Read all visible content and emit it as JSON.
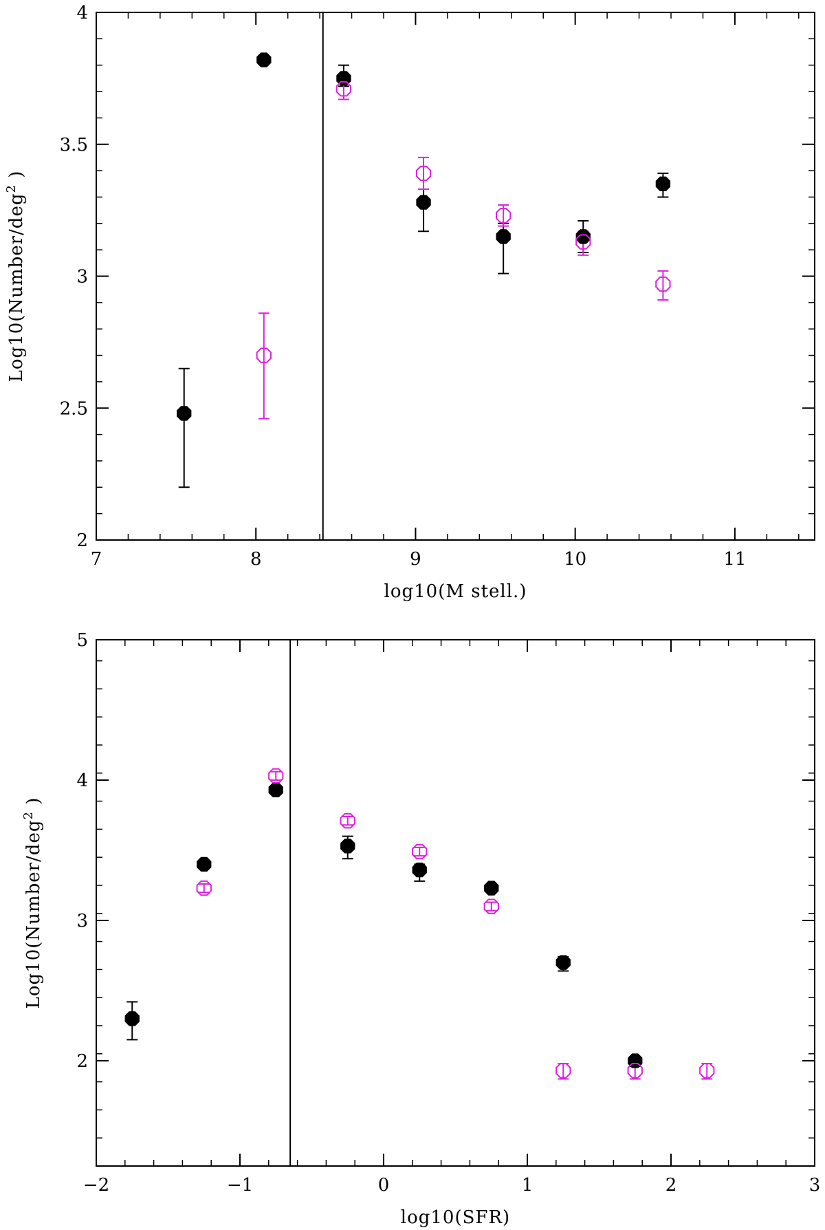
{
  "chart_data": [
    {
      "type": "scatter",
      "xlabel": "log10(M  stell.)",
      "ylabel": "Log10(Number/deg",
      "ylabel_sup": "2",
      "ylabel_end": " )",
      "xlim": [
        7,
        11.5
      ],
      "ylim": [
        2,
        4
      ],
      "x_ticks": [
        7,
        8,
        9,
        10,
        11
      ],
      "x_tick_labels": [
        "7",
        "8",
        "9",
        "10",
        "11"
      ],
      "x_minor_step": 0.2,
      "y_ticks": [
        2,
        2.5,
        3,
        3.5,
        4
      ],
      "y_tick_labels": [
        "2",
        "2.5",
        "3",
        "3.5",
        "4"
      ],
      "y_minor_step": 0.1,
      "vline": 8.42,
      "series": [
        {
          "name": "filled",
          "style": "filled",
          "color": "#000000",
          "points": [
            {
              "x": 7.55,
              "y": 2.48,
              "lo": 2.2,
              "hi": 2.65
            },
            {
              "x": 8.05,
              "y": 3.82,
              "lo": 3.82,
              "hi": 3.82
            },
            {
              "x": 8.55,
              "y": 3.75,
              "lo": 3.72,
              "hi": 3.8
            },
            {
              "x": 9.05,
              "y": 3.28,
              "lo": 3.17,
              "hi": 3.33
            },
            {
              "x": 9.55,
              "y": 3.15,
              "lo": 3.01,
              "hi": 3.2
            },
            {
              "x": 10.05,
              "y": 3.15,
              "lo": 3.09,
              "hi": 3.21
            },
            {
              "x": 10.55,
              "y": 3.35,
              "lo": 3.3,
              "hi": 3.39
            }
          ]
        },
        {
          "name": "open",
          "style": "open",
          "color": "#e020e0",
          "points": [
            {
              "x": 8.05,
              "y": 2.7,
              "lo": 2.46,
              "hi": 2.86
            },
            {
              "x": 8.55,
              "y": 3.71,
              "lo": 3.67,
              "hi": 3.74
            },
            {
              "x": 9.05,
              "y": 3.39,
              "lo": 3.33,
              "hi": 3.45
            },
            {
              "x": 9.55,
              "y": 3.23,
              "lo": 3.19,
              "hi": 3.27
            },
            {
              "x": 10.05,
              "y": 3.13,
              "lo": 3.08,
              "hi": 3.17
            },
            {
              "x": 10.55,
              "y": 2.97,
              "lo": 2.91,
              "hi": 3.02
            }
          ]
        }
      ]
    },
    {
      "type": "scatter",
      "xlabel": "log10(SFR)",
      "ylabel": "Log10(Number/deg",
      "ylabel_sup": "2",
      "ylabel_end": " )",
      "xlim": [
        -2,
        3
      ],
      "ylim": [
        1.25,
        5
      ],
      "x_ticks": [
        -2,
        -1,
        0,
        1,
        2,
        3
      ],
      "x_tick_labels": [
        "−2",
        "−1",
        "0",
        "1",
        "2",
        "3"
      ],
      "x_minor_step": 0.2,
      "y_ticks": [
        2,
        3,
        4,
        5
      ],
      "y_tick_labels": [
        "2",
        "3",
        "4",
        "5"
      ],
      "y_minor_step": 0.2,
      "vline": -0.65,
      "series": [
        {
          "name": "filled",
          "style": "filled",
          "color": "#000000",
          "points": [
            {
              "x": -1.75,
              "y": 2.3,
              "lo": 2.15,
              "hi": 2.42
            },
            {
              "x": -1.25,
              "y": 3.4,
              "lo": 3.4,
              "hi": 3.4
            },
            {
              "x": -0.75,
              "y": 3.93,
              "lo": 3.93,
              "hi": 3.93
            },
            {
              "x": -0.25,
              "y": 3.53,
              "lo": 3.44,
              "hi": 3.6
            },
            {
              "x": 0.25,
              "y": 3.36,
              "lo": 3.28,
              "hi": 3.4
            },
            {
              "x": 0.75,
              "y": 3.23,
              "lo": 3.2,
              "hi": 3.26
            },
            {
              "x": 1.25,
              "y": 2.7,
              "lo": 2.64,
              "hi": 2.74
            },
            {
              "x": 1.75,
              "y": 2.0,
              "lo": 1.96,
              "hi": 2.03
            }
          ]
        },
        {
          "name": "open",
          "style": "open",
          "color": "#e020e0",
          "points": [
            {
              "x": -1.25,
              "y": 3.23,
              "lo": 3.2,
              "hi": 3.26
            },
            {
              "x": -0.75,
              "y": 4.03,
              "lo": 4.0,
              "hi": 4.06
            },
            {
              "x": -0.25,
              "y": 3.71,
              "lo": 3.68,
              "hi": 3.74
            },
            {
              "x": 0.25,
              "y": 3.49,
              "lo": 3.46,
              "hi": 3.52
            },
            {
              "x": 0.75,
              "y": 3.1,
              "lo": 3.07,
              "hi": 3.13
            },
            {
              "x": 1.25,
              "y": 1.93,
              "lo": 1.87,
              "hi": 1.98
            },
            {
              "x": 1.75,
              "y": 1.93,
              "lo": 1.87,
              "hi": 1.98
            },
            {
              "x": 2.25,
              "y": 1.93,
              "lo": 1.87,
              "hi": 1.98
            }
          ]
        }
      ]
    }
  ]
}
